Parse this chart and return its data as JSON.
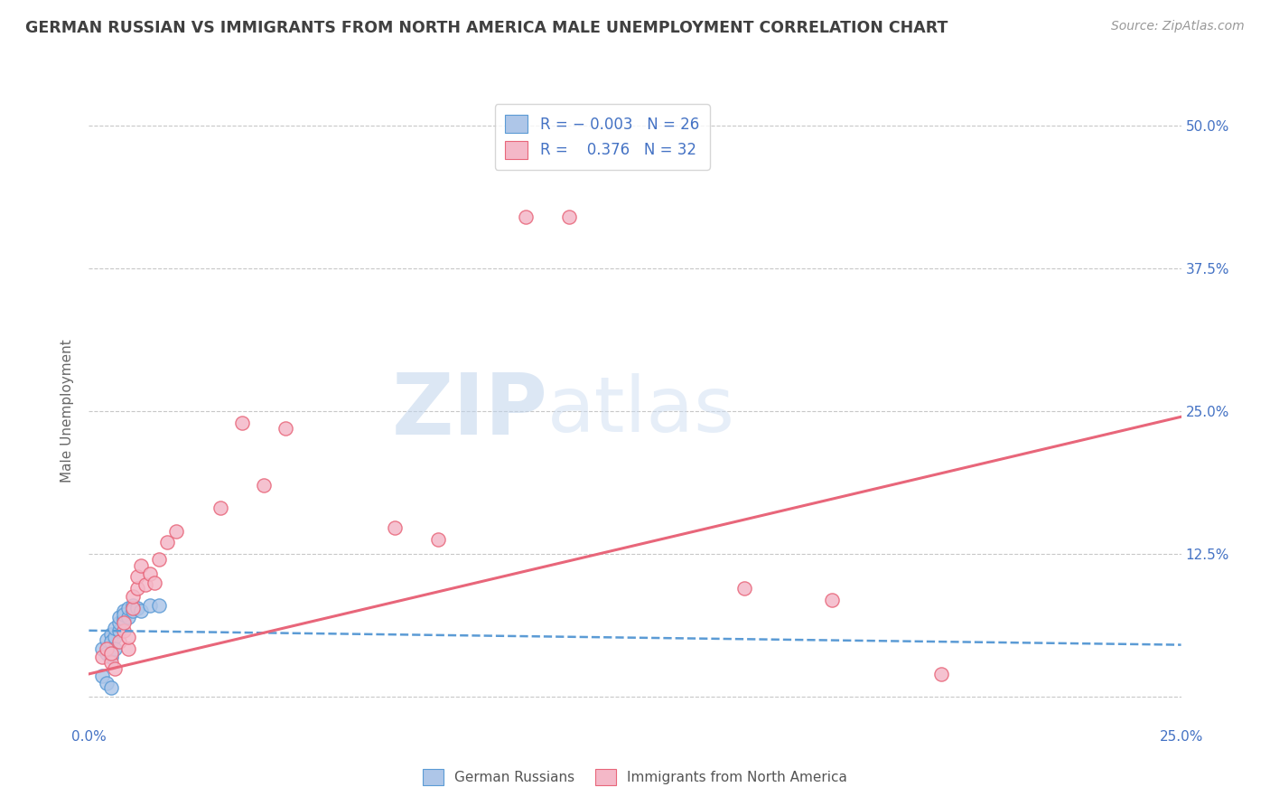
{
  "title": "GERMAN RUSSIAN VS IMMIGRANTS FROM NORTH AMERICA MALE UNEMPLOYMENT CORRELATION CHART",
  "source": "Source: ZipAtlas.com",
  "ylabel": "Male Unemployment",
  "xlim": [
    0.0,
    0.25
  ],
  "ylim": [
    -0.025,
    0.525
  ],
  "yticks": [
    0.0,
    0.125,
    0.25,
    0.375,
    0.5
  ],
  "ytick_labels": [
    "",
    "12.5%",
    "25.0%",
    "37.5%",
    "50.0%"
  ],
  "xticks": [
    0.0,
    0.05,
    0.1,
    0.15,
    0.2,
    0.25
  ],
  "xtick_labels": [
    "0.0%",
    "",
    "",
    "",
    "",
    "25.0%"
  ],
  "color_blue": "#aec6e8",
  "color_pink": "#f4b8c8",
  "line_blue": "#5b9bd5",
  "line_pink": "#e8667a",
  "watermark_zip": "ZIP",
  "watermark_atlas": "atlas",
  "title_color": "#404040",
  "axis_color": "#4472c4",
  "background": "#ffffff",
  "grid_color": "#c8c8c8",
  "scatter_blue": [
    [
      0.003,
      0.042
    ],
    [
      0.004,
      0.038
    ],
    [
      0.004,
      0.05
    ],
    [
      0.005,
      0.055
    ],
    [
      0.005,
      0.048
    ],
    [
      0.005,
      0.035
    ],
    [
      0.006,
      0.052
    ],
    [
      0.006,
      0.06
    ],
    [
      0.006,
      0.042
    ],
    [
      0.007,
      0.058
    ],
    [
      0.007,
      0.065
    ],
    [
      0.007,
      0.07
    ],
    [
      0.008,
      0.068
    ],
    [
      0.008,
      0.075
    ],
    [
      0.008,
      0.072
    ],
    [
      0.009,
      0.07
    ],
    [
      0.009,
      0.078
    ],
    [
      0.01,
      0.08
    ],
    [
      0.01,
      0.075
    ],
    [
      0.011,
      0.078
    ],
    [
      0.012,
      0.075
    ],
    [
      0.014,
      0.08
    ],
    [
      0.016,
      0.08
    ],
    [
      0.003,
      0.018
    ],
    [
      0.004,
      0.012
    ],
    [
      0.005,
      0.008
    ]
  ],
  "scatter_pink": [
    [
      0.003,
      0.035
    ],
    [
      0.004,
      0.042
    ],
    [
      0.005,
      0.03
    ],
    [
      0.005,
      0.038
    ],
    [
      0.006,
      0.025
    ],
    [
      0.007,
      0.048
    ],
    [
      0.008,
      0.058
    ],
    [
      0.008,
      0.065
    ],
    [
      0.009,
      0.042
    ],
    [
      0.009,
      0.052
    ],
    [
      0.01,
      0.078
    ],
    [
      0.01,
      0.088
    ],
    [
      0.011,
      0.095
    ],
    [
      0.011,
      0.105
    ],
    [
      0.012,
      0.115
    ],
    [
      0.013,
      0.098
    ],
    [
      0.014,
      0.108
    ],
    [
      0.015,
      0.1
    ],
    [
      0.016,
      0.12
    ],
    [
      0.018,
      0.135
    ],
    [
      0.02,
      0.145
    ],
    [
      0.03,
      0.165
    ],
    [
      0.04,
      0.185
    ],
    [
      0.07,
      0.148
    ],
    [
      0.08,
      0.138
    ],
    [
      0.1,
      0.42
    ],
    [
      0.11,
      0.42
    ],
    [
      0.15,
      0.095
    ],
    [
      0.17,
      0.085
    ],
    [
      0.195,
      0.02
    ],
    [
      0.035,
      0.24
    ],
    [
      0.045,
      0.235
    ]
  ],
  "trendline_blue_intercept": 0.058,
  "trendline_blue_slope": -0.05,
  "trendline_pink_intercept": 0.02,
  "trendline_pink_slope": 0.9
}
